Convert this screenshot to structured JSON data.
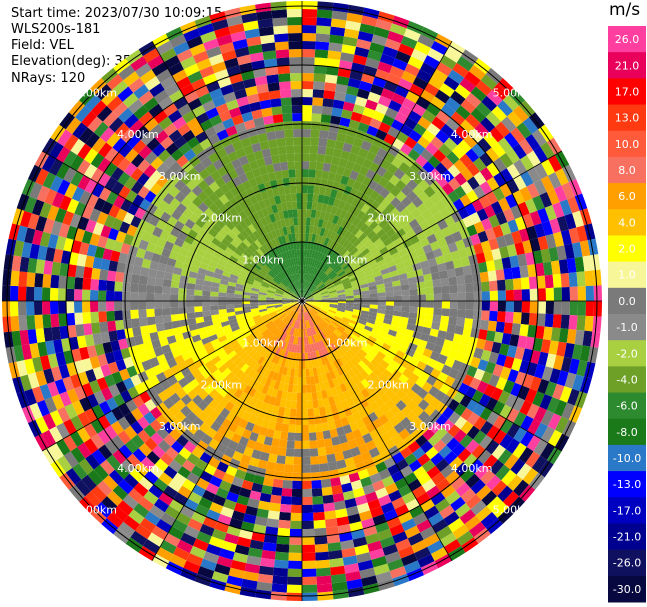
{
  "info": {
    "start_time": "Start time: 2023/07/30 10:09:15",
    "instrument": "WLS200s-181",
    "field": "Field: VEL",
    "elevation": "Elevation(deg): 35.30",
    "nrays": "NRays: 120"
  },
  "chart_data": {
    "type": "heatmap",
    "projection": "polar (PPI scan)",
    "field": "VEL",
    "units": "m/s",
    "n_rays": 120,
    "range_rings_km": [
      1.0,
      2.0,
      3.0,
      4.0,
      5.0
    ],
    "ring_labels": [
      "1.00km",
      "2.00km",
      "3.00km",
      "4.00km",
      "5.00km"
    ],
    "colorbar": {
      "title": "m/s",
      "ticks": [
        "26.0",
        "21.0",
        "17.0",
        "13.0",
        "10.0",
        "8.0",
        "6.0",
        "4.0",
        "2.0",
        "1.0",
        "0.0",
        "-1.0",
        "-2.0",
        "-4.0",
        "-6.0",
        "-8.0",
        "-10.0",
        "-13.0",
        "-17.0",
        "-21.0",
        "-26.0",
        "-30.0"
      ],
      "colors": [
        "#ff3fa0",
        "#e8005a",
        "#ff0000",
        "#ff3a10",
        "#ff5a3a",
        "#f87060",
        "#ffa000",
        "#ffc000",
        "#ffff00",
        "#f7f79a",
        "#7a7a7a",
        "#8a8a8a",
        "#a8d040",
        "#6ea028",
        "#2e8a2e",
        "#1a7a1a",
        "#2a78c8",
        "#0000ff",
        "#0000c0",
        "#000090",
        "#101060",
        "#080840"
      ]
    },
    "near_field_velocity_pattern": {
      "north_sector": "green (-8 to -2 m/s)",
      "south_sector": "yellow/orange (2 to 10 m/s)",
      "east_west": "grey (~0 m/s)"
    },
    "far_field": "noisy, mixed colors beyond ~3 km"
  }
}
